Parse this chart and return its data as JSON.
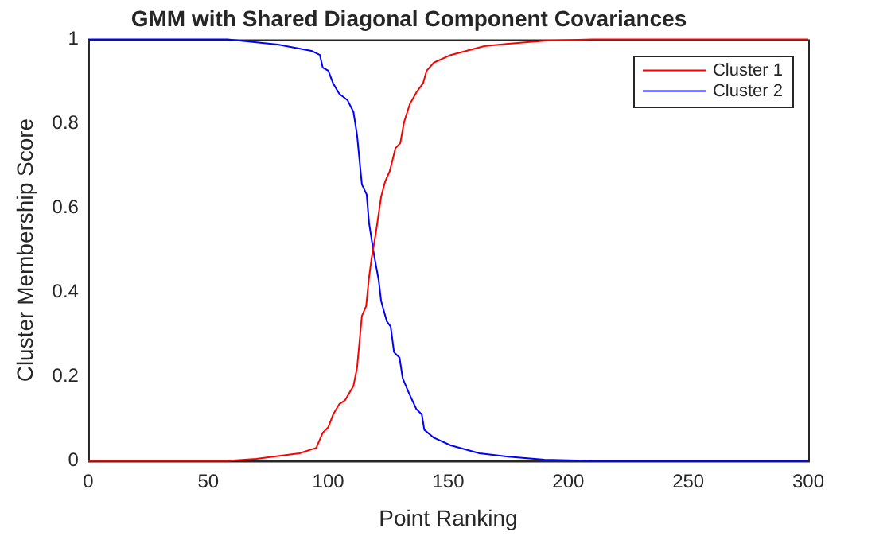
{
  "chart_data": {
    "type": "line",
    "title": "GMM with Shared Diagonal Component Covariances",
    "xlabel": "Point Ranking",
    "ylabel": "Cluster Membership Score",
    "xlim": [
      0,
      300
    ],
    "xticks": [
      0,
      50,
      100,
      150,
      200,
      250,
      300
    ],
    "ylim": [
      0,
      1
    ],
    "yticks": [
      0,
      0.2,
      0.4,
      0.6,
      0.8,
      1
    ],
    "grid": false,
    "legend": "top right",
    "marker": "none",
    "line_style": "solid",
    "series": [
      {
        "name": "Cluster 1",
        "color": "#ff0000",
        "x": [
          0,
          58,
          70,
          88,
          95,
          97.7,
          100,
          102,
          104.6,
          107,
          110.5,
          112,
          114,
          115.8,
          117,
          118,
          119.8,
          122,
          123.7,
          125.6,
          128,
          130,
          131.6,
          134,
          137,
          139.5,
          141,
          144,
          151,
          165,
          175,
          190,
          210,
          300
        ],
        "values": [
          0,
          0,
          0.005,
          0.018,
          0.031,
          0.067,
          0.08,
          0.11,
          0.135,
          0.144,
          0.178,
          0.221,
          0.344,
          0.368,
          0.436,
          0.479,
          0.54,
          0.626,
          0.663,
          0.687,
          0.742,
          0.754,
          0.804,
          0.847,
          0.877,
          0.896,
          0.926,
          0.945,
          0.963,
          0.984,
          0.99,
          0.997,
          1,
          1
        ]
      },
      {
        "name": "Cluster 2",
        "color": "#0000ff",
        "x": [
          0,
          58,
          79,
          93,
          96.5,
          97.7,
          100,
          102,
          104.6,
          108,
          110.5,
          112,
          114,
          116,
          117,
          119,
          121,
          122,
          124.4,
          126,
          127.4,
          129.7,
          131,
          133.7,
          136.7,
          139,
          140,
          144,
          151,
          163,
          175,
          190,
          210,
          300
        ],
        "values": [
          1,
          1,
          0.988,
          0.973,
          0.963,
          0.933,
          0.926,
          0.896,
          0.871,
          0.856,
          0.828,
          0.773,
          0.656,
          0.632,
          0.564,
          0.491,
          0.429,
          0.38,
          0.331,
          0.319,
          0.258,
          0.245,
          0.196,
          0.16,
          0.123,
          0.11,
          0.074,
          0.055,
          0.037,
          0.018,
          0.01,
          0.003,
          0,
          0
        ]
      }
    ]
  }
}
